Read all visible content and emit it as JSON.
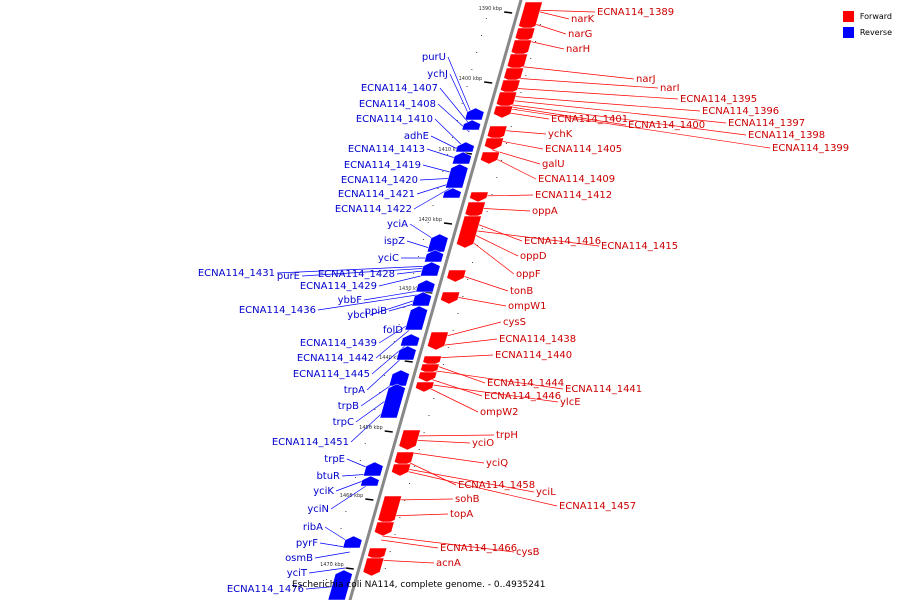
{
  "caption": "Escherichia coli NA114, complete genome. - 0..4935241",
  "legend": [
    {
      "label": "Forward",
      "color": "#ff0000"
    },
    {
      "label": "Reverse",
      "color": "#0000ff"
    }
  ],
  "colors": {
    "forward": "#ff0000",
    "reverse": "#0000ff",
    "backbone": "#888888"
  },
  "ticks": [
    "1390 kbp",
    "1400 kbp",
    "1410 kbp",
    "1420 kbp",
    "1430 kbp",
    "1440 kbp",
    "1450 kbp",
    "1460 kbp",
    "1470 kbp"
  ],
  "forward_labels": [
    "ECNA114_1389",
    "narK",
    "narG",
    "narH",
    "narJ",
    "narI",
    "ECNA114_1395",
    "ECNA114_1396",
    "ECNA114_1397",
    "ECNA114_1398",
    "ECNA114_1399",
    "ECNA114_1401",
    "ECNA114_1400",
    "ychK",
    "ECNA114_1405",
    "galU",
    "ECNA114_1409",
    "ECNA114_1412",
    "oppA",
    "ECNA114_1416",
    "ECNA114_1415",
    "oppD",
    "oppF",
    "tonB",
    "ompW1",
    "cysS",
    "ECNA114_1438",
    "ECNA114_1440",
    "ECNA114_1444",
    "ECNA114_1441",
    "ECNA114_1446",
    "ylcE",
    "ompW2",
    "trpH",
    "yciO",
    "yciQ",
    "ECNA114_1458",
    "yciL",
    "sohB",
    "ECNA114_1457",
    "topA",
    "ECNA114_1466",
    "cysB",
    "acnA"
  ],
  "reverse_labels": [
    "purU",
    "ychJ",
    "ECNA114_1407",
    "ECNA114_1408",
    "ECNA114_1410",
    "adhE",
    "ECNA114_1413",
    "ECNA114_1419",
    "ECNA114_1420",
    "ECNA114_1421",
    "ECNA114_1422",
    "yciA",
    "ispZ",
    "yciC",
    "ECNA114_1431",
    "purE",
    "ECNA114_1428",
    "ECNA114_1429",
    "ybbF",
    "ECNA114_1436",
    "ybcI",
    "ppiB",
    "folD",
    "ECNA114_1439",
    "ECNA114_1442",
    "ECNA114_1445",
    "trpA",
    "trpB",
    "trpC",
    "ECNA114_1451",
    "trpE",
    "btuR",
    "yciK",
    "yciN",
    "ribA",
    "pyrF",
    "osmB",
    "yciT",
    "ECNA114_1476"
  ]
}
